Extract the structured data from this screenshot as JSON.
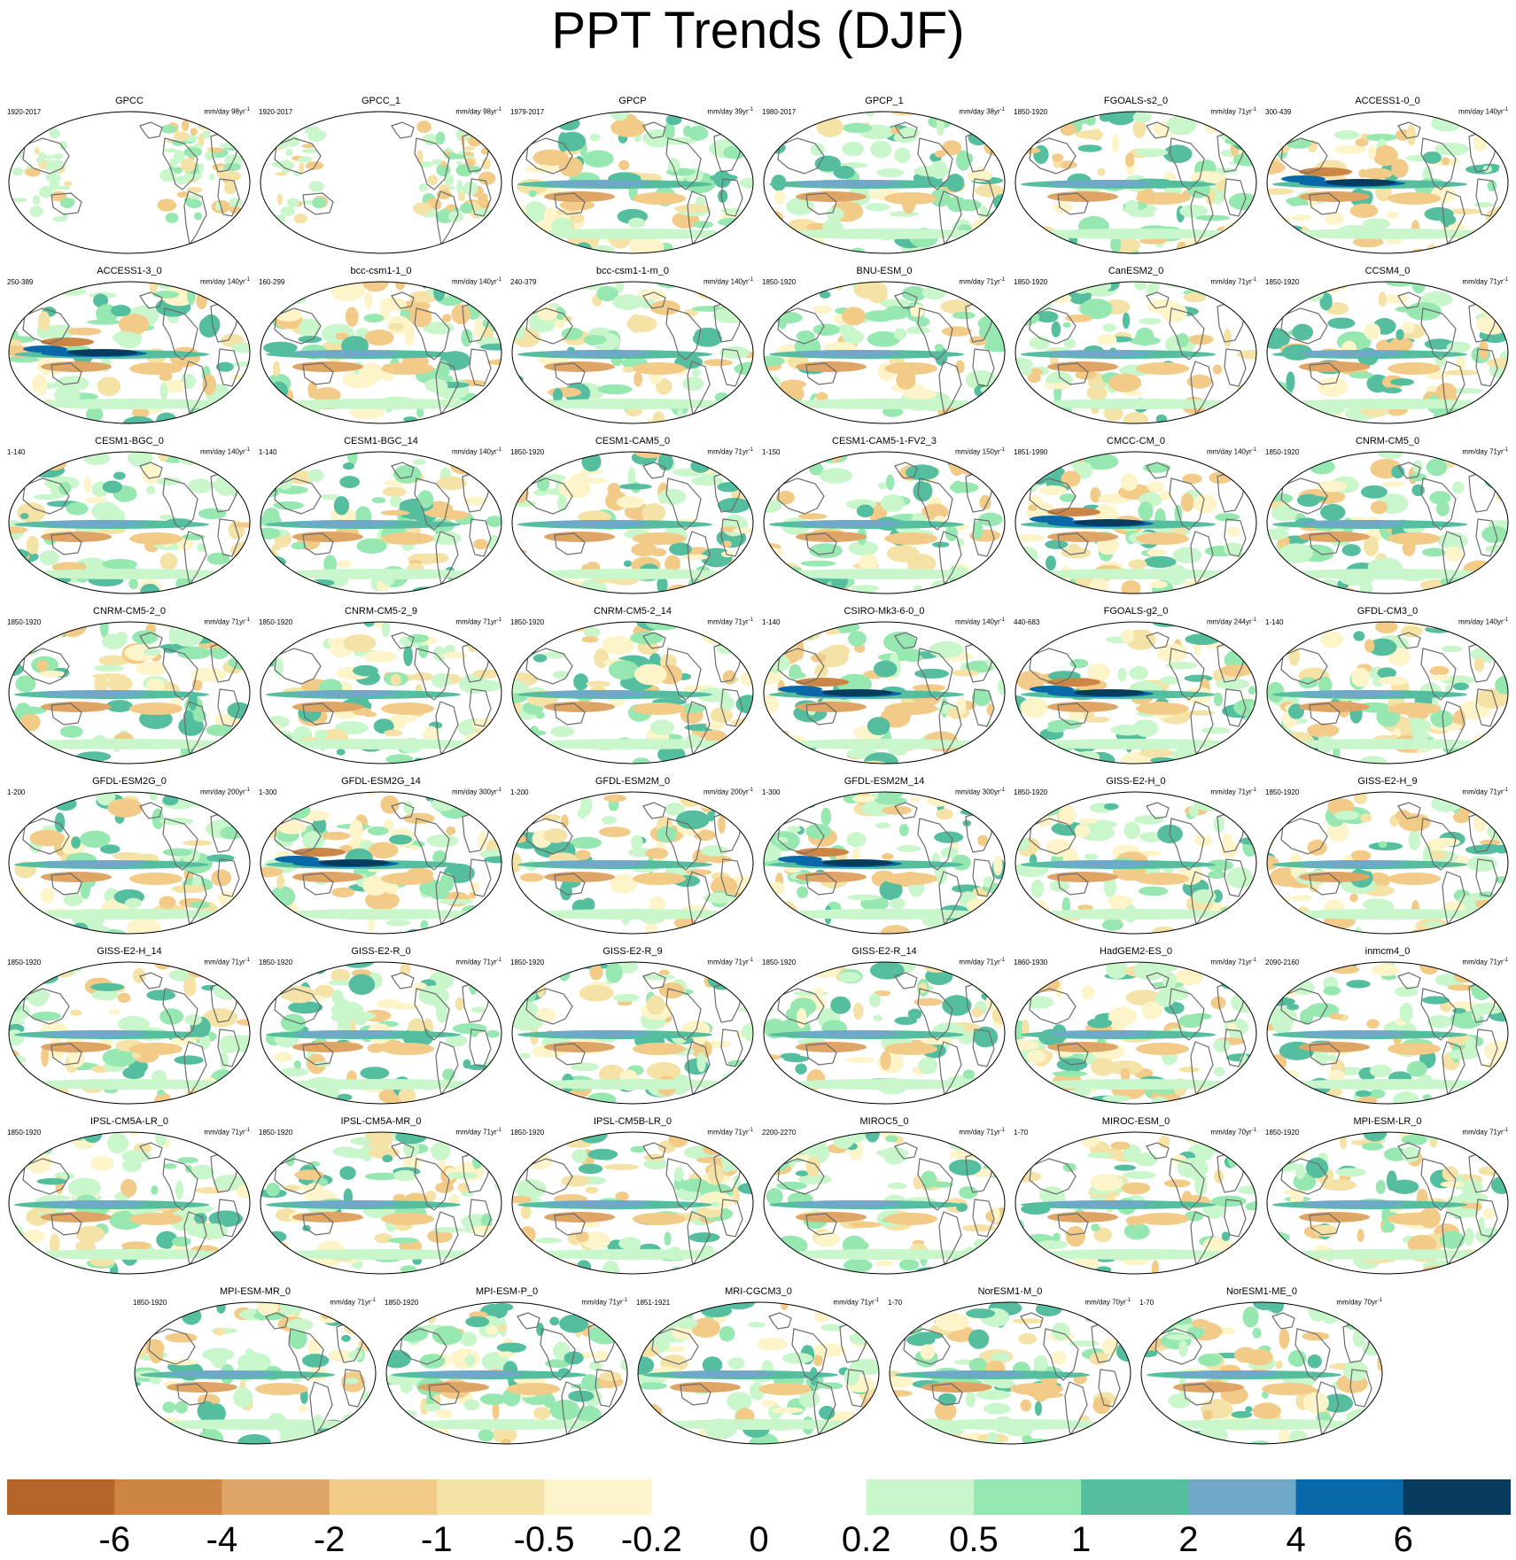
{
  "title": "PPT Trends (DJF)",
  "colorbar": {
    "labels": [
      "-6",
      "-4",
      "-2",
      "-1",
      "-0.5",
      "-0.2",
      "0",
      "0.2",
      "0.5",
      "1",
      "2",
      "4",
      "6"
    ],
    "colors": [
      "#b5642a",
      "#cc8544",
      "#dfa566",
      "#f3cb89",
      "#f5e2a7",
      "#fdf5c9",
      "#ffffff",
      "#ffffff",
      "#c9f6cb",
      "#97e8b0",
      "#54be9f",
      "#6ea9c9",
      "#0868a8",
      "#073c5f"
    ]
  },
  "units_label": "mm/day",
  "panels": [
    {
      "name": "GPCC",
      "period": "1920-2017",
      "years": "98yr",
      "type": "obs-land"
    },
    {
      "name": "GPCC_1",
      "period": "1920-2017",
      "years": "98yr",
      "type": "obs-land"
    },
    {
      "name": "GPCP",
      "period": "1979-2017",
      "years": "39yr",
      "type": "obs"
    },
    {
      "name": "GPCP_1",
      "period": "1980-2017",
      "years": "38yr",
      "type": "obs"
    },
    {
      "name": "FGOALS-s2_0",
      "period": "1850-1920",
      "years": "71yr",
      "type": "model"
    },
    {
      "name": "ACCESS1-0_0",
      "period": "300-439",
      "years": "140yr",
      "type": "strong"
    },
    {
      "name": "ACCESS1-3_0",
      "period": "250-389",
      "years": "140yr",
      "type": "strong"
    },
    {
      "name": "bcc-csm1-1_0",
      "period": "160-299",
      "years": "140yr",
      "type": "model"
    },
    {
      "name": "bcc-csm1-1-m_0",
      "period": "240-379",
      "years": "140yr",
      "type": "model"
    },
    {
      "name": "BNU-ESM_0",
      "period": "1850-1920",
      "years": "71yr",
      "type": "model"
    },
    {
      "name": "CanESM2_0",
      "period": "1850-1920",
      "years": "71yr",
      "type": "model"
    },
    {
      "name": "CCSM4_0",
      "period": "1850-1920",
      "years": "71yr",
      "type": "model"
    },
    {
      "name": "CESM1-BGC_0",
      "period": "1-140",
      "years": "140yr",
      "type": "model"
    },
    {
      "name": "CESM1-BGC_14",
      "period": "1-140",
      "years": "140yr",
      "type": "model"
    },
    {
      "name": "CESM1-CAM5_0",
      "period": "1850-1920",
      "years": "71yr",
      "type": "model"
    },
    {
      "name": "CESM1-CAM5-1-FV2_3",
      "period": "1-150",
      "years": "150yr",
      "type": "model"
    },
    {
      "name": "CMCC-CM_0",
      "period": "1851-1990",
      "years": "140yr",
      "type": "strong"
    },
    {
      "name": "CNRM-CM5_0",
      "period": "1850-1920",
      "years": "71yr",
      "type": "model"
    },
    {
      "name": "CNRM-CM5-2_0",
      "period": "1850-1920",
      "years": "71yr",
      "type": "model"
    },
    {
      "name": "CNRM-CM5-2_9",
      "period": "1850-1920",
      "years": "71yr",
      "type": "model"
    },
    {
      "name": "CNRM-CM5-2_14",
      "period": "1850-1920",
      "years": "71yr",
      "type": "model"
    },
    {
      "name": "CSIRO-Mk3-6-0_0",
      "period": "1-140",
      "years": "140yr",
      "type": "strong"
    },
    {
      "name": "FGOALS-g2_0",
      "period": "440-683",
      "years": "244yr",
      "type": "strong"
    },
    {
      "name": "GFDL-CM3_0",
      "period": "1-140",
      "years": "140yr",
      "type": "model"
    },
    {
      "name": "GFDL-ESM2G_0",
      "period": "1-200",
      "years": "200yr",
      "type": "model"
    },
    {
      "name": "GFDL-ESM2G_14",
      "period": "1-300",
      "years": "300yr",
      "type": "strong"
    },
    {
      "name": "GFDL-ESM2M_0",
      "period": "1-200",
      "years": "200yr",
      "type": "model"
    },
    {
      "name": "GFDL-ESM2M_14",
      "period": "1-300",
      "years": "300yr",
      "type": "strong"
    },
    {
      "name": "GISS-E2-H_0",
      "period": "1850-1920",
      "years": "71yr",
      "type": "model"
    },
    {
      "name": "GISS-E2-H_9",
      "period": "1850-1920",
      "years": "71yr",
      "type": "model"
    },
    {
      "name": "GISS-E2-H_14",
      "period": "1850-1920",
      "years": "71yr",
      "type": "model"
    },
    {
      "name": "GISS-E2-R_0",
      "period": "1850-1920",
      "years": "71yr",
      "type": "model"
    },
    {
      "name": "GISS-E2-R_9",
      "period": "1850-1920",
      "years": "71yr",
      "type": "model"
    },
    {
      "name": "GISS-E2-R_14",
      "period": "1850-1920",
      "years": "71yr",
      "type": "model"
    },
    {
      "name": "HadGEM2-ES_0",
      "period": "1860-1930",
      "years": "71yr",
      "type": "model"
    },
    {
      "name": "inmcm4_0",
      "period": "2090-2160",
      "years": "71yr",
      "type": "model"
    },
    {
      "name": "IPSL-CM5A-LR_0",
      "period": "1850-1920",
      "years": "71yr",
      "type": "model"
    },
    {
      "name": "IPSL-CM5A-MR_0",
      "period": "1850-1920",
      "years": "71yr",
      "type": "model"
    },
    {
      "name": "IPSL-CM5B-LR_0",
      "period": "1850-1920",
      "years": "71yr",
      "type": "model"
    },
    {
      "name": "MIROC5_0",
      "period": "2200-2270",
      "years": "71yr",
      "type": "model"
    },
    {
      "name": "MIROC-ESM_0",
      "period": "1-70",
      "years": "70yr",
      "type": "model"
    },
    {
      "name": "MPI-ESM-LR_0",
      "period": "1850-1920",
      "years": "71yr",
      "type": "model"
    },
    {
      "name": "MPI-ESM-MR_0",
      "period": "1850-1920",
      "years": "71yr",
      "type": "model"
    },
    {
      "name": "MPI-ESM-P_0",
      "period": "1850-1920",
      "years": "71yr",
      "type": "model"
    },
    {
      "name": "MRI-CGCM3_0",
      "period": "1851-1921",
      "years": "71yr",
      "type": "model"
    },
    {
      "name": "NorESM1-M_0",
      "period": "1-70",
      "years": "70yr",
      "type": "model"
    },
    {
      "name": "NorESM1-ME_0",
      "period": "1-70",
      "years": "70yr",
      "type": "model"
    }
  ]
}
